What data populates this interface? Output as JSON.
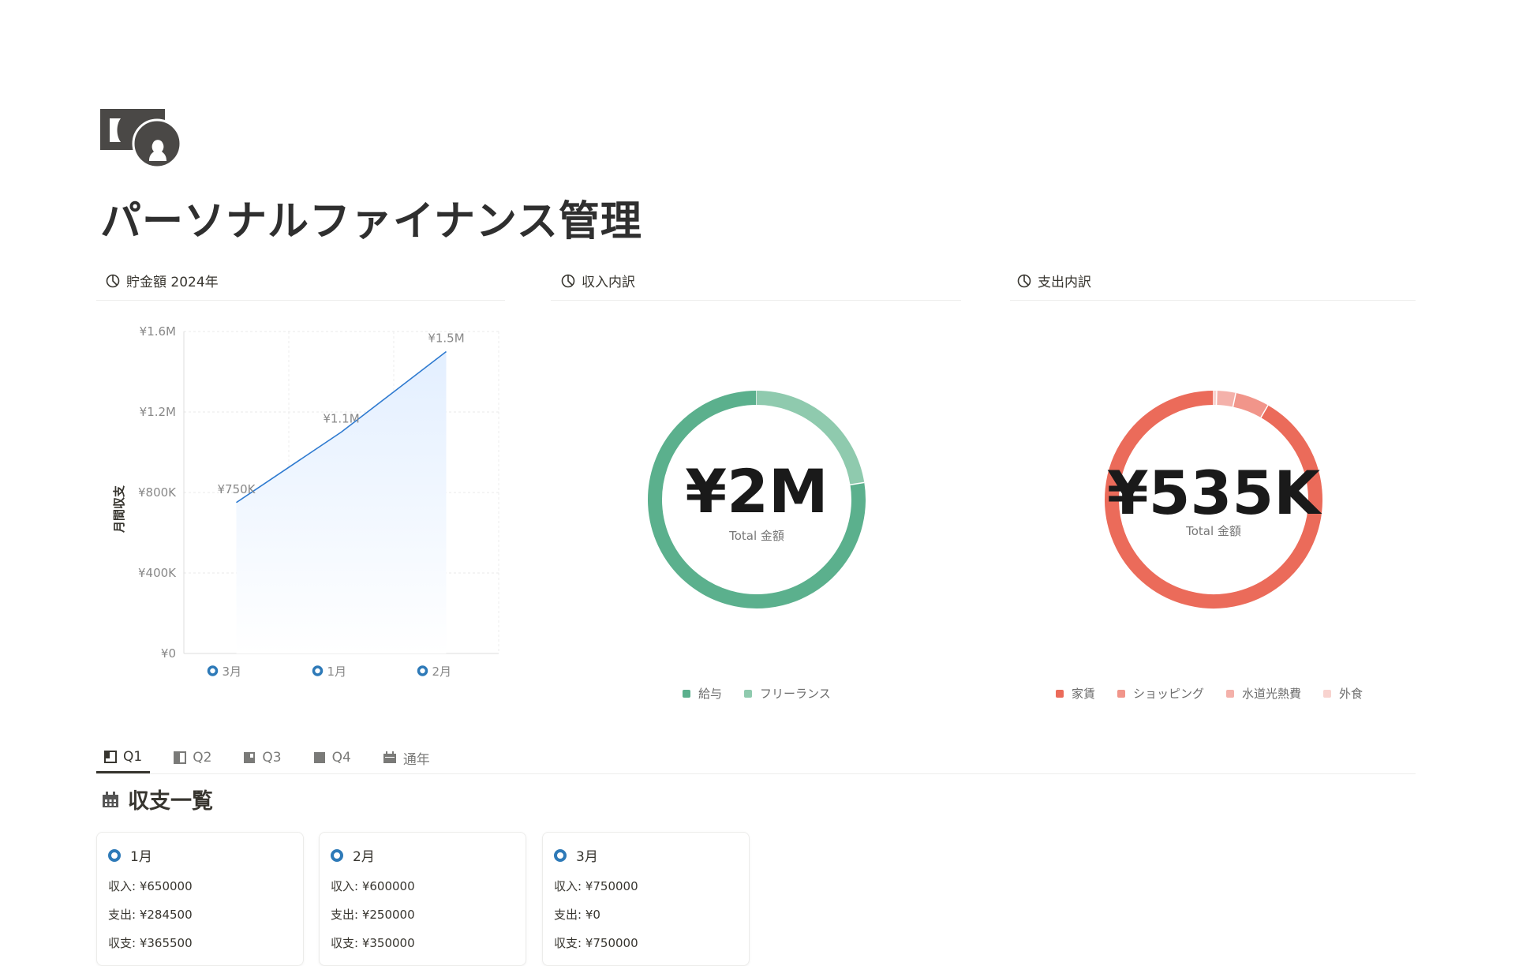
{
  "page": {
    "icon": "money-bill-person-icon",
    "title": "パーソナルファイナンス管理"
  },
  "sections": [
    {
      "title": "貯金額 2024年",
      "icon": "pie-chart-icon"
    },
    {
      "title": "収入内訳",
      "icon": "pie-chart-icon"
    },
    {
      "title": "支出内訳",
      "icon": "pie-chart-icon"
    }
  ],
  "chart_data": [
    {
      "type": "area",
      "categories": [
        "3月",
        "1月",
        "2月"
      ],
      "values": [
        750000,
        1100000,
        1500000
      ],
      "data_labels": [
        "¥750K",
        "¥1.1M",
        "¥1.5M"
      ],
      "ylabel": "月間収支",
      "ylim": [
        0,
        1600000
      ],
      "yticks": [
        "¥0",
        "¥400K",
        "¥800K",
        "¥1.2M",
        "¥1.6M"
      ],
      "yticks_values": [
        0,
        400000,
        800000,
        1200000,
        1600000
      ],
      "grid": true,
      "color": "#2e7ad0"
    },
    {
      "type": "pie",
      "donut": true,
      "center_value": "¥2M",
      "center_label": "Total 金額",
      "categories": [
        "給与",
        "フリーランス"
      ],
      "values": [
        1550000,
        450000
      ],
      "colors": [
        "#5bb08d",
        "#8fcaae"
      ],
      "legend": "bottom"
    },
    {
      "type": "pie",
      "donut": true,
      "center_value": "¥535K",
      "center_label": "Total 金額",
      "categories": [
        "家賃",
        "ショッピング",
        "水道光熱費",
        "外食"
      ],
      "values": [
        490000,
        27000,
        15000,
        2500
      ],
      "colors": [
        "#eb6b5a",
        "#f1958a",
        "#f4b1aa",
        "#f8d3cf"
      ],
      "legend": "bottom"
    }
  ],
  "tabs": [
    {
      "label": "Q1",
      "icon": "layout-q1-icon",
      "active": true
    },
    {
      "label": "Q2",
      "icon": "layout-q2-icon"
    },
    {
      "label": "Q3",
      "icon": "layout-q3-icon"
    },
    {
      "label": "Q4",
      "icon": "layout-q4-icon"
    },
    {
      "label": "通年",
      "icon": "calendar-icon"
    }
  ],
  "list": {
    "title": "収支一覧",
    "icon": "calendar-icon",
    "cards": [
      {
        "month": "1月",
        "income": "収入: ¥650000",
        "expense": "支出: ¥284500",
        "balance": "収支: ¥365500"
      },
      {
        "month": "2月",
        "income": "収入: ¥600000",
        "expense": "支出: ¥250000",
        "balance": "収支: ¥350000"
      },
      {
        "month": "3月",
        "income": "収入: ¥750000",
        "expense": "支出: ¥0",
        "balance": "収支: ¥750000"
      }
    ]
  }
}
